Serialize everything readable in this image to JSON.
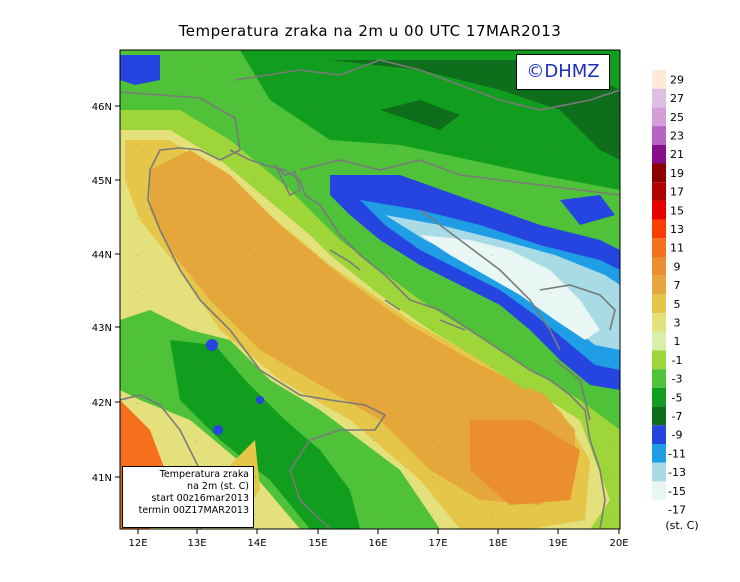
{
  "title": "Temperatura zraka na 2m u 00 UTC 17MAR2013",
  "copyright": "©DHMZ",
  "info_box": {
    "line1": "Temperatura zraka",
    "line2": "na 2m (st. C)",
    "line3": "start 00z16mar2013",
    "line4": "termin 00Z17MAR2013"
  },
  "x_ticks": [
    "12E",
    "13E",
    "14E",
    "15E",
    "16E",
    "17E",
    "18E",
    "19E",
    "20E"
  ],
  "y_ticks": [
    "46N",
    "45N",
    "44N",
    "43N",
    "42N",
    "41N"
  ],
  "legend": {
    "unit": "(st. C)",
    "labels": [
      "29",
      "27",
      "25",
      "23",
      "21",
      "19",
      "17",
      "15",
      "13",
      "11",
      "9",
      "7",
      "5",
      "3",
      "1",
      "-1",
      "-3",
      "-5",
      "-7",
      "-9",
      "-11",
      "-13",
      "-15",
      "-17"
    ],
    "colors": [
      "#fdebd7",
      "#dcc0e0",
      "#d59ed8",
      "#b763c3",
      "#870f8a",
      "#8c0000",
      "#b10000",
      "#e60000",
      "#fc3d00",
      "#f56f1d",
      "#ea8e30",
      "#e5a63c",
      "#e6c649",
      "#e4e07c",
      "#d9eea8",
      "#9ed63a",
      "#4fc23a",
      "#119e1e",
      "#0f6e1c",
      "#2544e0",
      "#1f9ee6",
      "#a9dbe7",
      "#e8f6f4"
    ]
  }
}
